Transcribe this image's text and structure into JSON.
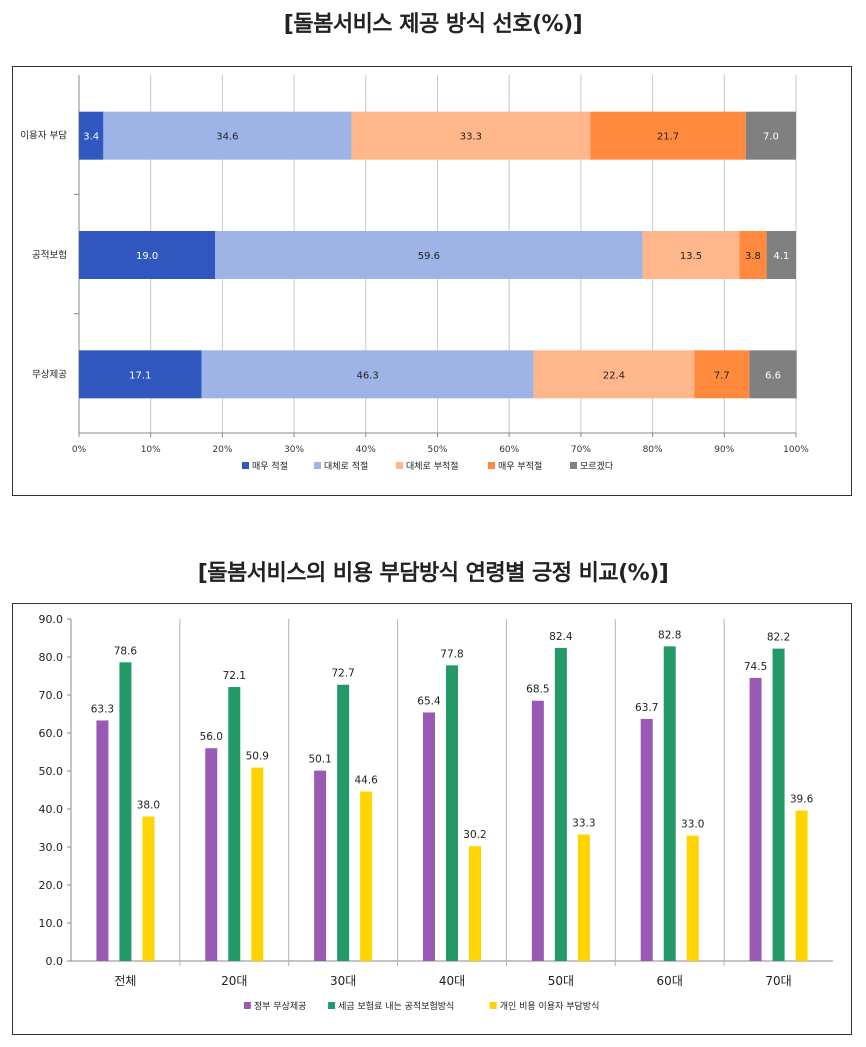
{
  "chart_data": [
    {
      "type": "bar",
      "orientation": "horizontal",
      "stacked": true,
      "title": "[돌봄서비스 제공 방식 선호(%)]",
      "categories": [
        "이용자 부담",
        "공적보험",
        "무상제공"
      ],
      "series": [
        {
          "name": "매우 적절",
          "color": "#3056C0",
          "values": [
            3.4,
            19.0,
            17.1
          ]
        },
        {
          "name": "대체로 적절",
          "color": "#9FB4E6",
          "values": [
            34.6,
            59.6,
            46.3
          ]
        },
        {
          "name": "대체로 부적절",
          "color": "#FFB68A",
          "values": [
            33.3,
            13.5,
            22.4
          ]
        },
        {
          "name": "매우 부적절",
          "color": "#FF8A3D",
          "values": [
            21.7,
            3.8,
            7.7
          ]
        },
        {
          "name": "모르겠다",
          "color": "#808080",
          "values": [
            7.0,
            4.1,
            6.6
          ]
        }
      ],
      "xticks": [
        "0%",
        "10%",
        "20%",
        "30%",
        "40%",
        "50%",
        "60%",
        "70%",
        "80%",
        "90%",
        "100%"
      ],
      "xlim": [
        0,
        100
      ],
      "legend": "bottom"
    },
    {
      "type": "bar",
      "title": "[돌봄서비스의 비용 부담방식 연령별 긍정 비교(%)]",
      "categories": [
        "전체",
        "20대",
        "30대",
        "40대",
        "50대",
        "60대",
        "70대"
      ],
      "series": [
        {
          "name": "정부 무상제공",
          "color": "#9B59B6",
          "values": [
            63.3,
            56.0,
            50.1,
            65.4,
            68.5,
            63.7,
            74.5
          ]
        },
        {
          "name": "세금 보험료 내는 공적보험방식",
          "color": "#229966",
          "values": [
            78.6,
            72.1,
            72.7,
            77.8,
            82.4,
            82.8,
            82.2
          ]
        },
        {
          "name": "개인 비용 이용자 부담방식",
          "color": "#FFD400",
          "values": [
            38.0,
            50.9,
            44.6,
            30.2,
            33.3,
            33.0,
            39.6
          ]
        }
      ],
      "yticks": [
        "0.0",
        "10.0",
        "20.0",
        "30.0",
        "40.0",
        "50.0",
        "60.0",
        "70.0",
        "80.0",
        "90.0"
      ],
      "ylim": [
        0,
        90
      ],
      "legend": "bottom"
    }
  ]
}
